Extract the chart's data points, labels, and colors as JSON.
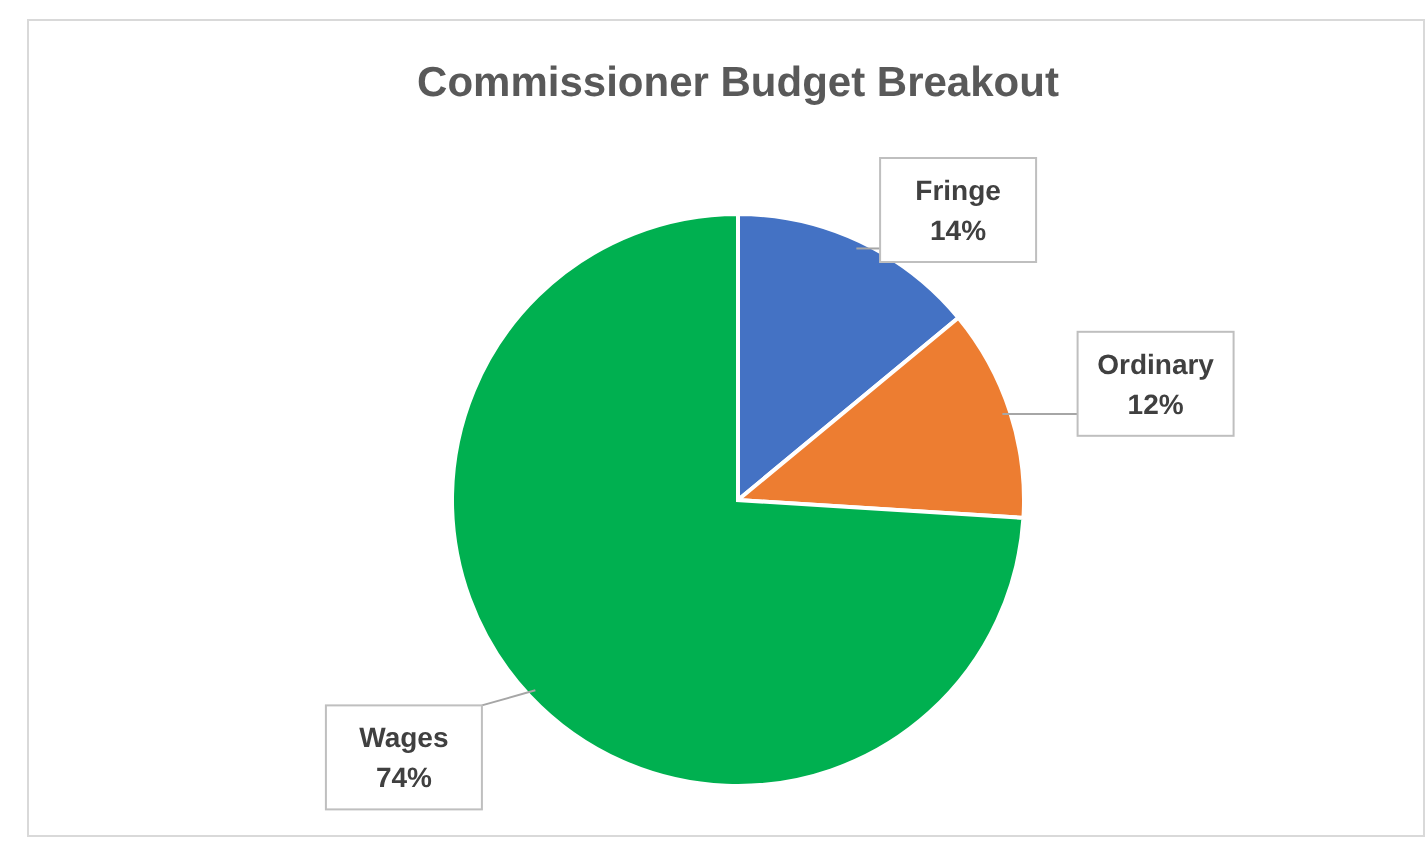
{
  "chart_data": {
    "type": "pie",
    "title": "Commissioner Budget Breakout",
    "categories": [
      "Fringe",
      "Ordinary",
      "Wages"
    ],
    "values": [
      14,
      12,
      74
    ],
    "colors": [
      "#4472c4",
      "#ed7d31",
      "#00b050"
    ],
    "value_labels": [
      "14%",
      "12%",
      "74%"
    ]
  }
}
